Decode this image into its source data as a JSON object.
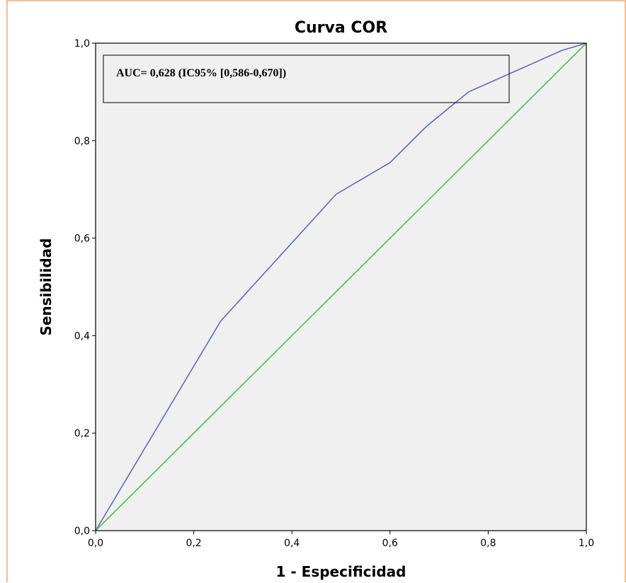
{
  "chart_data": {
    "type": "line",
    "title": "Curva COR",
    "xlabel": "1 - Especificidad",
    "ylabel": "Sensibilidad",
    "xlim": [
      0,
      1
    ],
    "ylim": [
      0,
      1
    ],
    "x_ticks": [
      "0,0",
      "0,2",
      "0,4",
      "0,6",
      "0,8",
      "1,0"
    ],
    "y_ticks": [
      "0,0",
      "0,2",
      "0,4",
      "0,6",
      "0,8",
      "1,0"
    ],
    "grid": false,
    "annotation": "AUC= 0,628 (IC95% [0,586-0,670])",
    "series": [
      {
        "color": "#5b6bbf",
        "x": [
          0.0,
          0.255,
          0.49,
          0.6,
          0.675,
          0.76,
          0.95,
          1.0
        ],
        "y": [
          0.0,
          0.43,
          0.69,
          0.755,
          0.83,
          0.9,
          0.985,
          1.0
        ]
      },
      {
        "color": "#4dc04d",
        "x": [
          0.0,
          1.0
        ],
        "y": [
          0.0,
          1.0
        ]
      }
    ],
    "colors": {
      "plot_background": "#f0f0f0",
      "frame_border": "#f2a96b"
    }
  }
}
